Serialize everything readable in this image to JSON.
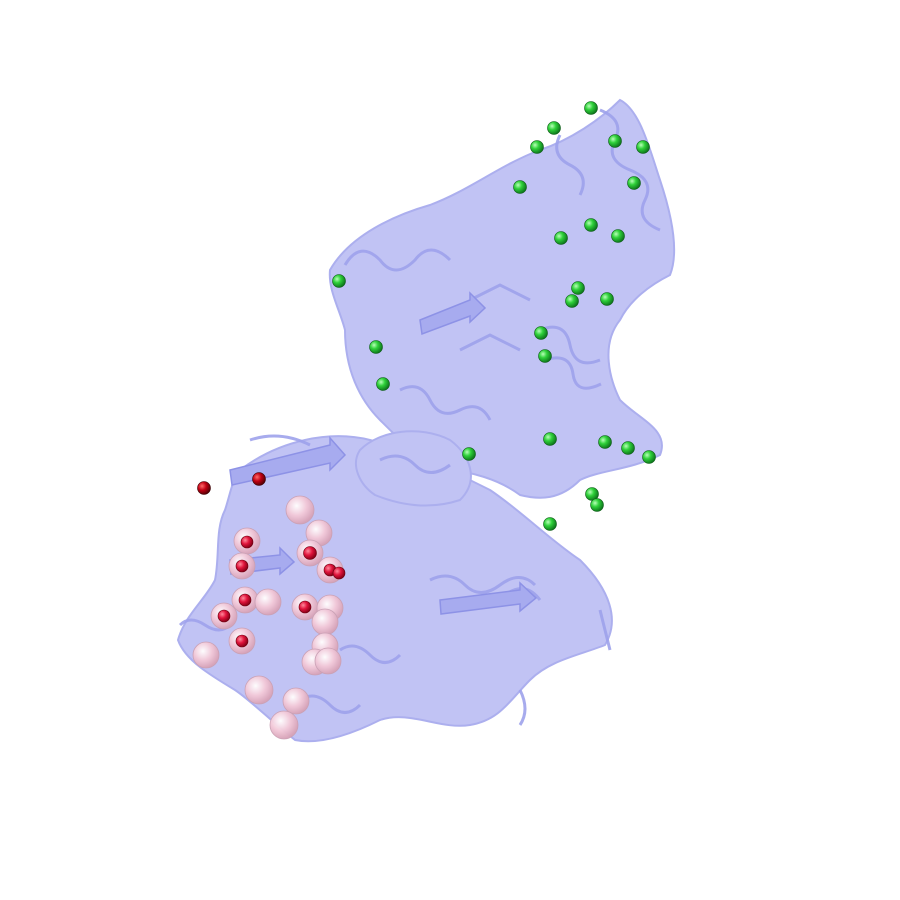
{
  "image": {
    "subject": "protein-cartoon",
    "background_color": "#ffffff",
    "colors": {
      "cartoon": "#b7b9f3",
      "cartoon_shadow": "#9ea2ec",
      "green_sphere": "#2fd13a",
      "green_sphere_dark": "#0f7a1d",
      "pink_sphere": "#f2c8d8",
      "red_sphere": "#e0143c",
      "dark_red_sphere": "#a00010"
    }
  }
}
